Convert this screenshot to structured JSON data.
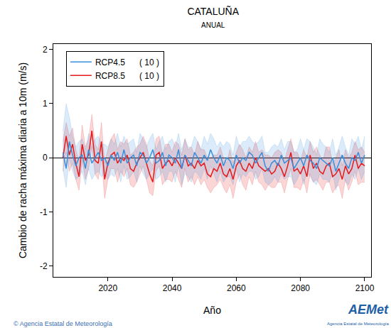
{
  "chart_data": {
    "type": "line",
    "title": "CATALUÑA",
    "subtitle": "ANUAL",
    "xlabel": "Año",
    "ylabel": "Cambio de racha máxima diaria a 10m (m/s)",
    "footer": "© Agencia Estatal de Meteorología",
    "logo": "AEMet",
    "logo_subtitle": "Agencia Estatal de Meteorología",
    "xlim": [
      2003,
      2102
    ],
    "xticks": [
      2020,
      2040,
      2060,
      2080,
      2100
    ],
    "ylim": [
      -2.2,
      2.1
    ],
    "yticks": [
      -2,
      -1,
      0,
      1,
      2
    ],
    "grid": false,
    "legend": "upper left",
    "x": [
      2006,
      2007,
      2008,
      2009,
      2010,
      2011,
      2012,
      2013,
      2014,
      2015,
      2016,
      2017,
      2018,
      2019,
      2020,
      2021,
      2022,
      2023,
      2024,
      2025,
      2026,
      2027,
      2028,
      2029,
      2030,
      2031,
      2032,
      2033,
      2034,
      2035,
      2036,
      2037,
      2038,
      2039,
      2040,
      2041,
      2042,
      2043,
      2044,
      2045,
      2046,
      2047,
      2048,
      2049,
      2050,
      2051,
      2052,
      2053,
      2054,
      2055,
      2056,
      2057,
      2058,
      2059,
      2060,
      2061,
      2062,
      2063,
      2064,
      2065,
      2066,
      2067,
      2068,
      2069,
      2070,
      2071,
      2072,
      2073,
      2074,
      2075,
      2076,
      2077,
      2078,
      2079,
      2080,
      2081,
      2082,
      2083,
      2084,
      2085,
      2086,
      2087,
      2088,
      2089,
      2090,
      2091,
      2092,
      2093,
      2094,
      2095,
      2096,
      2097,
      2098,
      2099,
      2100
    ],
    "series": [
      {
        "name": "RCP8.5",
        "count": "( 10 )",
        "color": "#e41a1c",
        "values": [
          0.0,
          0.4,
          0.05,
          0.25,
          -0.1,
          -0.35,
          0.25,
          -0.05,
          0.05,
          0.5,
          -0.05,
          -0.1,
          0.3,
          -0.4,
          -0.1,
          0.05,
          0.1,
          -0.1,
          0.0,
          -0.05,
          0.05,
          -0.2,
          -0.25,
          -0.1,
          0.0,
          0.1,
          -0.1,
          -0.3,
          -0.45,
          0.05,
          0.1,
          -0.2,
          -0.1,
          -0.05,
          -0.15,
          0.0,
          -0.1,
          -0.2,
          0.05,
          -0.15,
          -0.1,
          -0.2,
          -0.05,
          -0.15,
          -0.1,
          -0.3,
          -0.35,
          -0.2,
          -0.25,
          -0.1,
          -0.3,
          -0.35,
          -0.2,
          -0.4,
          -0.15,
          -0.05,
          -0.2,
          -0.25,
          -0.1,
          -0.2,
          0.0,
          -0.15,
          -0.2,
          -0.25,
          -0.2,
          -0.3,
          -0.25,
          -0.1,
          -0.2,
          -0.35,
          -0.15,
          0.1,
          -0.25,
          -0.2,
          -0.3,
          -0.15,
          -0.35,
          0.05,
          -0.2,
          -0.1,
          -0.25,
          -0.3,
          -0.15,
          -0.1,
          -0.35,
          -0.3,
          -0.2,
          -0.4,
          -0.15,
          -0.3,
          -0.2,
          0.05,
          -0.2,
          -0.1,
          -0.15
        ],
        "upper": [
          0.3,
          0.65,
          0.4,
          0.55,
          0.15,
          -0.05,
          0.6,
          0.2,
          0.35,
          0.8,
          0.25,
          0.15,
          0.65,
          -0.1,
          0.15,
          0.35,
          0.45,
          0.15,
          0.3,
          0.25,
          0.35,
          0.05,
          0.1,
          0.2,
          0.25,
          0.4,
          0.25,
          -0.05,
          -0.15,
          0.35,
          0.4,
          0.05,
          0.25,
          0.25,
          0.1,
          0.3,
          0.25,
          0.05,
          0.35,
          0.15,
          0.2,
          0.05,
          0.3,
          0.15,
          0.15,
          0.0,
          0.0,
          0.05,
          0.05,
          0.2,
          0.0,
          -0.1,
          0.15,
          -0.1,
          0.1,
          0.25,
          0.15,
          0.0,
          0.2,
          0.1,
          0.3,
          0.1,
          0.15,
          0.05,
          0.05,
          0.0,
          0.1,
          0.15,
          0.1,
          -0.05,
          0.15,
          0.35,
          0.1,
          0.1,
          -0.05,
          0.15,
          0.0,
          0.3,
          0.1,
          0.2,
          0.05,
          -0.05,
          0.2,
          0.2,
          -0.1,
          0.0,
          0.15,
          -0.15,
          0.15,
          0.0,
          0.1,
          0.3,
          0.15,
          0.2,
          0.1
        ],
        "lower": [
          -0.25,
          0.1,
          -0.25,
          -0.1,
          -0.4,
          -0.6,
          -0.05,
          -0.4,
          -0.2,
          0.2,
          -0.3,
          -0.4,
          0.0,
          -0.75,
          -0.4,
          -0.2,
          -0.2,
          -0.45,
          -0.25,
          -0.35,
          -0.2,
          -0.5,
          -0.55,
          -0.45,
          -0.3,
          -0.15,
          -0.4,
          -0.65,
          -0.7,
          -0.25,
          -0.15,
          -0.5,
          -0.4,
          -0.4,
          -0.45,
          -0.25,
          -0.4,
          -0.55,
          -0.2,
          -0.45,
          -0.35,
          -0.5,
          -0.35,
          -0.5,
          -0.4,
          -0.55,
          -0.65,
          -0.55,
          -0.5,
          -0.4,
          -0.55,
          -0.65,
          -0.5,
          -0.75,
          -0.45,
          -0.3,
          -0.5,
          -0.6,
          -0.35,
          -0.5,
          -0.25,
          -0.45,
          -0.5,
          -0.6,
          -0.5,
          -0.55,
          -0.55,
          -0.45,
          -0.45,
          -0.65,
          -0.4,
          -0.2,
          -0.55,
          -0.55,
          -0.6,
          -0.4,
          -0.65,
          -0.3,
          -0.45,
          -0.4,
          -0.5,
          -0.6,
          -0.45,
          -0.45,
          -0.65,
          -0.55,
          -0.5,
          -0.75,
          -0.4,
          -0.6,
          -0.45,
          -0.25,
          -0.5,
          -0.45,
          -0.45
        ]
      },
      {
        "name": "RCP4.5",
        "count": "( 10 )",
        "color": "#3a8fdc",
        "values": [
          0.1,
          -0.2,
          0.3,
          0.05,
          -0.15,
          0.0,
          0.05,
          -0.2,
          0.15,
          -0.1,
          0.0,
          0.1,
          -0.05,
          0.0,
          -0.15,
          0.05,
          -0.05,
          0.1,
          -0.1,
          0.15,
          -0.1,
          0.0,
          0.05,
          -0.15,
          0.1,
          0.05,
          -0.1,
          0.0,
          0.15,
          -0.1,
          -0.05,
          0.1,
          -0.15,
          0.05,
          0.0,
          -0.1,
          0.15,
          -0.2,
          0.05,
          -0.05,
          -0.15,
          0.1,
          0.0,
          -0.1,
          0.05,
          -0.05,
          0.15,
          0.0,
          -0.1,
          0.05,
          -0.15,
          0.0,
          -0.05,
          -0.2,
          0.05,
          -0.1,
          0.0,
          -0.05,
          0.1,
          0.05,
          -0.1,
          0.0,
          0.1,
          -0.15,
          -0.25,
          -0.1,
          -0.05,
          -0.15,
          0.05,
          -0.1,
          -0.05,
          0.0,
          -0.2,
          -0.1,
          0.0,
          -0.15,
          0.05,
          -0.05,
          -0.1,
          -0.2,
          0.0,
          -0.05,
          -0.1,
          -0.15,
          0.0,
          -0.25,
          -0.1,
          0.05,
          -0.1,
          -0.2,
          0.0,
          -0.05,
          0.1,
          -0.1,
          0.05
        ],
        "upper": [
          0.5,
          1.0,
          0.75,
          0.4,
          0.2,
          0.3,
          0.35,
          0.15,
          0.45,
          0.2,
          0.35,
          0.4,
          0.25,
          0.25,
          0.2,
          0.35,
          0.25,
          0.45,
          0.2,
          0.4,
          0.25,
          0.3,
          0.35,
          0.1,
          0.45,
          0.35,
          0.2,
          0.35,
          0.45,
          0.15,
          0.3,
          0.4,
          0.15,
          0.3,
          0.35,
          0.2,
          0.45,
          0.15,
          0.35,
          0.2,
          0.2,
          0.4,
          0.3,
          0.15,
          0.4,
          0.25,
          0.45,
          0.35,
          0.2,
          0.3,
          0.2,
          0.3,
          0.25,
          0.05,
          0.4,
          0.2,
          0.3,
          0.3,
          0.4,
          0.3,
          0.25,
          0.3,
          0.4,
          0.1,
          0.1,
          0.2,
          0.25,
          0.2,
          0.35,
          0.15,
          0.3,
          0.3,
          0.1,
          0.15,
          0.35,
          0.15,
          0.35,
          0.3,
          0.2,
          0.05,
          0.35,
          0.25,
          0.2,
          0.1,
          0.35,
          0.05,
          0.2,
          0.4,
          0.2,
          0.05,
          0.35,
          0.25,
          0.4,
          0.15,
          0.4
        ],
        "lower": [
          -0.2,
          -0.55,
          0.0,
          -0.25,
          -0.4,
          -0.35,
          -0.25,
          -0.5,
          -0.2,
          -0.4,
          -0.3,
          -0.25,
          -0.35,
          -0.3,
          -0.4,
          -0.3,
          -0.35,
          -0.2,
          -0.45,
          -0.15,
          -0.4,
          -0.35,
          -0.25,
          -0.45,
          -0.15,
          -0.3,
          -0.4,
          -0.3,
          -0.2,
          -0.4,
          -0.35,
          -0.25,
          -0.45,
          -0.25,
          -0.25,
          -0.45,
          -0.15,
          -0.5,
          -0.3,
          -0.35,
          -0.45,
          -0.25,
          -0.3,
          -0.4,
          -0.2,
          -0.4,
          -0.15,
          -0.3,
          -0.45,
          -0.25,
          -0.45,
          -0.35,
          -0.35,
          -0.5,
          -0.2,
          -0.45,
          -0.3,
          -0.35,
          -0.25,
          -0.25,
          -0.4,
          -0.35,
          -0.2,
          -0.45,
          -0.5,
          -0.45,
          -0.35,
          -0.45,
          -0.3,
          -0.4,
          -0.35,
          -0.35,
          -0.5,
          -0.4,
          -0.25,
          -0.5,
          -0.25,
          -0.35,
          -0.45,
          -0.5,
          -0.3,
          -0.4,
          -0.4,
          -0.45,
          -0.25,
          -0.6,
          -0.4,
          -0.25,
          -0.45,
          -0.5,
          -0.3,
          -0.4,
          -0.2,
          -0.4,
          -0.25
        ]
      }
    ]
  }
}
